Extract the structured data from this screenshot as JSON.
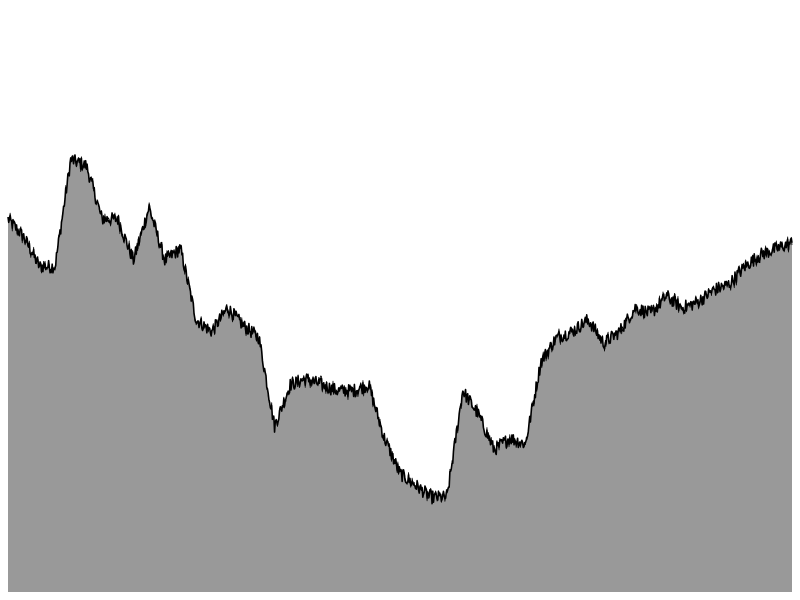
{
  "chart_data": {
    "type": "area",
    "title": "",
    "xlabel": "",
    "ylabel": "",
    "grid": false,
    "legend": "none",
    "xlim": [
      0,
      100
    ],
    "ylim": [
      0,
      100
    ],
    "x": [
      0,
      2,
      4,
      6,
      8,
      10,
      12,
      14,
      16,
      18,
      20,
      22,
      24,
      26,
      28,
      30,
      32,
      34,
      36,
      38,
      40,
      42,
      44,
      46,
      48,
      50,
      52,
      54,
      56,
      58,
      60,
      62,
      64,
      66,
      68,
      70,
      72,
      74,
      76,
      78,
      80,
      82,
      84,
      86,
      88,
      90,
      92,
      94,
      96,
      98,
      100
    ],
    "series": [
      {
        "values": [
          63,
          60,
          55,
          55,
          73,
          72,
          63,
          63,
          56,
          65,
          56,
          58,
          46,
          44,
          48,
          45,
          43,
          28,
          35,
          36,
          35,
          34,
          34,
          35,
          26,
          20,
          18,
          16,
          16,
          34,
          30,
          24,
          26,
          25,
          39,
          43,
          44,
          46,
          42,
          44,
          48,
          47,
          50,
          48,
          49,
          51,
          52,
          55,
          57,
          58,
          59
        ]
      }
    ],
    "colors": {
      "fill": "#999999",
      "line": "#000000",
      "background": "#ffffff"
    }
  }
}
